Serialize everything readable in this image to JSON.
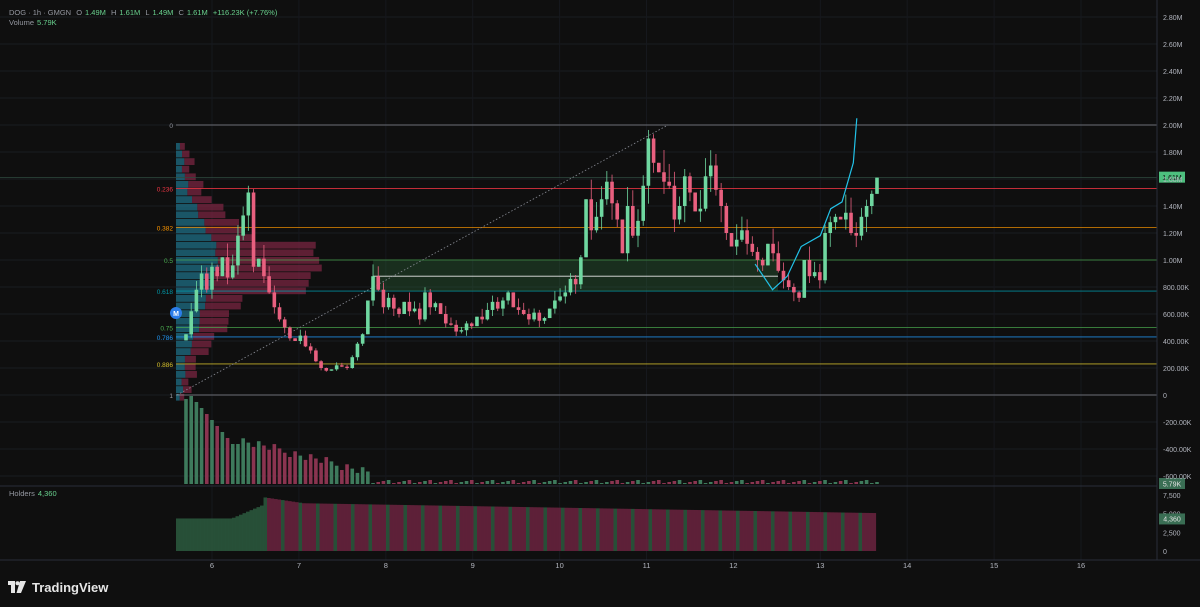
{
  "legend": {
    "symbol": "DOG · 1h · GMGN",
    "open_label": "O",
    "open": "1.49M",
    "high_label": "H",
    "high": "1.61M",
    "low_label": "L",
    "low": "1.49M",
    "close_label": "C",
    "close": "1.61M",
    "change": "+116.23K (+7.76%)",
    "volume_label": "Volume",
    "volume_value": "5.79K",
    "holders_label": "Holders",
    "holders_value": "4,360"
  },
  "branding": {
    "logo_text": "TradingView"
  },
  "marker": {
    "label": "M"
  },
  "colors": {
    "background": "#0f0f0f",
    "up": "#6fd7a0",
    "down": "#e8607f",
    "vol_up": "#3e7a5c",
    "vol_down": "#8a3450",
    "projection": "#22c2e8",
    "profile_blue": "#1f6f86",
    "profile_pink": "#7a2542"
  },
  "chart_data": {
    "type": "candlestick",
    "symbol": "DOG",
    "interval": "1h",
    "x_ticks": [
      "6",
      "7",
      "8",
      "9",
      "10",
      "11",
      "12",
      "13",
      "14",
      "15",
      "16"
    ],
    "x_range_days": [
      5.54,
      17.29
    ],
    "y_ticks": [
      "2.80M",
      "2.60M",
      "2.40M",
      "2.20M",
      "2.00M",
      "1.80M",
      "1.60M",
      "1.40M",
      "1.20M",
      "1.00M",
      "800.00K",
      "600.00K",
      "400.00K",
      "200.00K",
      "0",
      "-200.00K",
      "-400.00K",
      "-600.00K"
    ],
    "y_range": [
      -660000,
      2900000
    ],
    "last_price": 1610000,
    "last_price_label": "1.61M",
    "volume_label": "5.79K",
    "holders_label": "4,360",
    "holders_axis_ticks": [
      "7,500",
      "5,000",
      "2,500",
      "0"
    ],
    "holders_range": [
      0,
      8000
    ],
    "fibonacci": [
      {
        "level": "0",
        "price": 2000000,
        "color": "#9598a1"
      },
      {
        "level": "0.236",
        "price": 1530000,
        "color": "#f23645"
      },
      {
        "level": "0.382",
        "price": 1240000,
        "color": "#ff9800"
      },
      {
        "level": "0.5",
        "price": 1000000,
        "color": "#4caf50"
      },
      {
        "level": "0.618",
        "price": 770000,
        "color": "#0097a7"
      },
      {
        "level": "0.75",
        "price": 500000,
        "color": "#4caf50"
      },
      {
        "level": "0.786",
        "price": 430000,
        "color": "#2196f3"
      },
      {
        "level": "0.886",
        "price": 230000,
        "color": "#d6c12e"
      },
      {
        "level": "1",
        "price": 0,
        "color": "#9598a1"
      }
    ],
    "candles_close": [
      450000,
      620000,
      780000,
      900000,
      780000,
      950000,
      880000,
      1020000,
      870000,
      960000,
      1180000,
      1330000,
      1500000,
      950000,
      1010000,
      880000,
      760000,
      650000,
      560000,
      500000,
      420000,
      400000,
      440000,
      360000,
      330000,
      250000,
      200000,
      180000,
      190000,
      220000,
      210000,
      200000,
      280000,
      380000,
      450000,
      700000,
      880000,
      780000,
      650000,
      720000,
      640000,
      600000,
      690000,
      620000,
      640000,
      560000,
      760000,
      650000,
      680000,
      600000,
      530000,
      520000,
      470000,
      480000,
      530000,
      510000,
      580000,
      560000,
      630000,
      690000,
      640000,
      700000,
      760000,
      650000,
      630000,
      600000,
      560000,
      610000,
      550000,
      570000,
      640000,
      700000,
      730000,
      760000,
      860000,
      820000,
      1020000,
      1450000,
      1220000,
      1320000,
      1450000,
      1580000,
      1420000,
      1300000,
      1050000,
      1400000,
      1180000,
      1290000,
      1550000,
      1900000,
      1720000,
      1650000,
      1580000,
      1550000,
      1300000,
      1400000,
      1620000,
      1500000,
      1360000,
      1380000,
      1620000,
      1700000,
      1520000,
      1400000,
      1200000,
      1100000,
      1150000,
      1220000,
      1120000,
      1060000,
      1000000,
      960000,
      1120000,
      1050000,
      920000,
      850000,
      800000,
      760000,
      720000,
      1000000,
      880000,
      910000,
      850000,
      1200000,
      1280000,
      1320000,
      1300000,
      1350000,
      1200000,
      1180000,
      1320000,
      1400000,
      1490000,
      1610000
    ],
    "projection_path": [
      [
        12.25,
        970000
      ],
      [
        12.45,
        780000
      ],
      [
        12.62,
        880000
      ],
      [
        12.78,
        1100000
      ],
      [
        13.0,
        1180000
      ],
      [
        13.12,
        1380000
      ],
      [
        13.25,
        1430000
      ],
      [
        13.38,
        1720000
      ],
      [
        13.42,
        2050000
      ]
    ]
  }
}
